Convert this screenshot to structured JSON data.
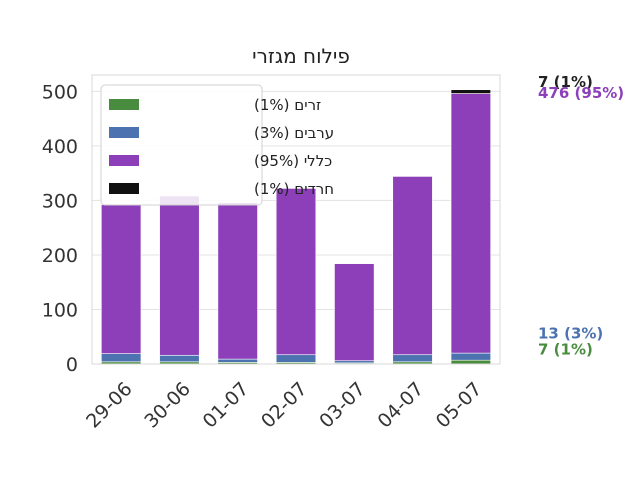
{
  "chart_data": {
    "type": "bar",
    "stacked": true,
    "title": "פילוח מגזרי",
    "xlabel": "",
    "ylabel": "",
    "categories": [
      "29-06",
      "30-06",
      "01-07",
      "02-07",
      "03-07",
      "04-07",
      "05-07"
    ],
    "ylim": [
      0,
      530
    ],
    "yticks": [
      0,
      100,
      200,
      300,
      400,
      500
    ],
    "grid": true,
    "legend_position": "top-left",
    "series": [
      {
        "name": "זרים",
        "legend_label": "זרים (1%)",
        "color": "#4a8c3f",
        "values": [
          4,
          4,
          3,
          3,
          2,
          4,
          7
        ]
      },
      {
        "name": "ערבים",
        "legend_label": "ערבים (3%)",
        "color": "#4c72b0",
        "values": [
          15,
          12,
          6,
          14,
          4,
          13,
          13
        ]
      },
      {
        "name": "כללי",
        "legend_label": "כללי (95%)",
        "color": "#8c3fb8",
        "values": [
          273,
          292,
          287,
          305,
          178,
          327,
          476
        ]
      },
      {
        "name": "חרדים",
        "legend_label": "חרדים (1%)",
        "color": "#111111",
        "values": [
          0,
          0,
          0,
          0,
          0,
          0,
          7
        ]
      }
    ],
    "side_annotations": [
      {
        "text": "7 (1%)",
        "color": "#222222",
        "anchor_value": 508
      },
      {
        "text": "476 (95%)",
        "color": "#8c3fb8",
        "anchor_value": 488
      },
      {
        "text": "13 (3%)",
        "color": "#4c72b0",
        "anchor_value": 47
      },
      {
        "text": "7 (1%)",
        "color": "#4a8c3f",
        "anchor_value": 17
      }
    ]
  }
}
